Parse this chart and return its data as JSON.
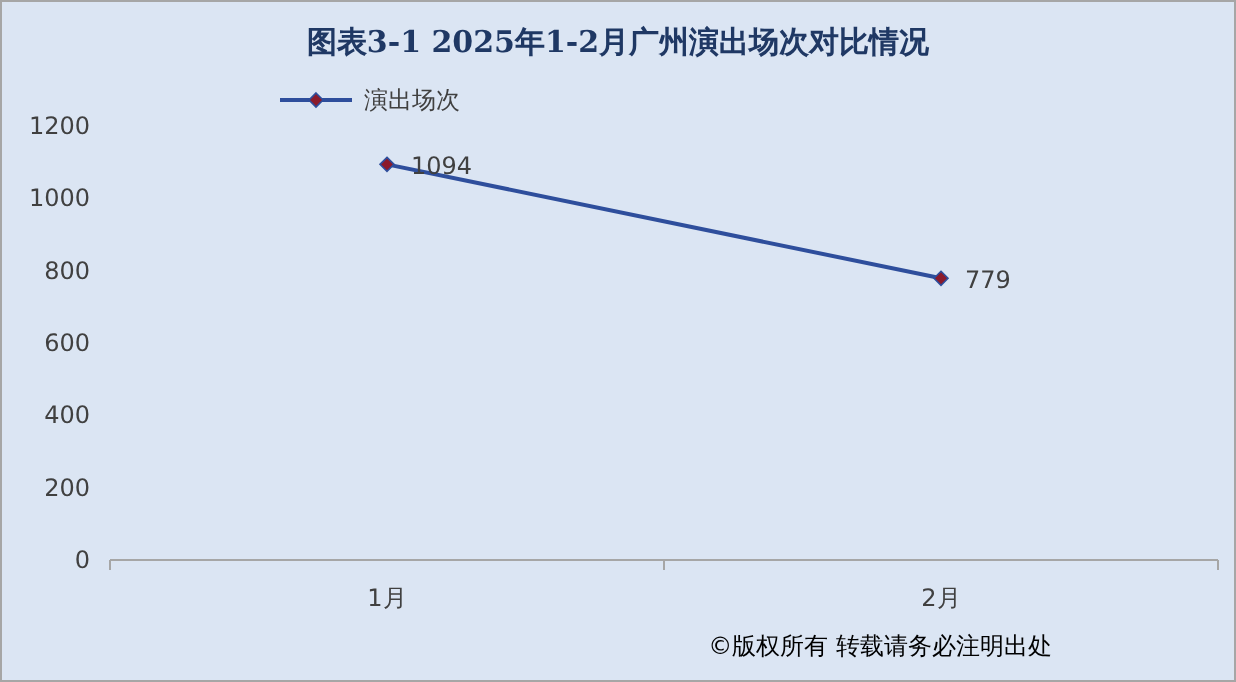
{
  "chart_data": {
    "type": "line",
    "title": "图表3-1 2025年1-2月广州演出场次对比情况",
    "categories": [
      "1月",
      "2月"
    ],
    "series": [
      {
        "name": "演出场次",
        "color": "#2e4e9c",
        "values": [
          1094,
          779
        ]
      }
    ],
    "ylim": [
      0,
      1200
    ],
    "yticks": [
      0,
      200,
      400,
      600,
      800,
      1000,
      1200
    ],
    "data_labels": true,
    "marker": "diamond",
    "legend": "top left",
    "grid": false,
    "annotations": [
      "©版权所有 转载请务必注明出处"
    ]
  }
}
